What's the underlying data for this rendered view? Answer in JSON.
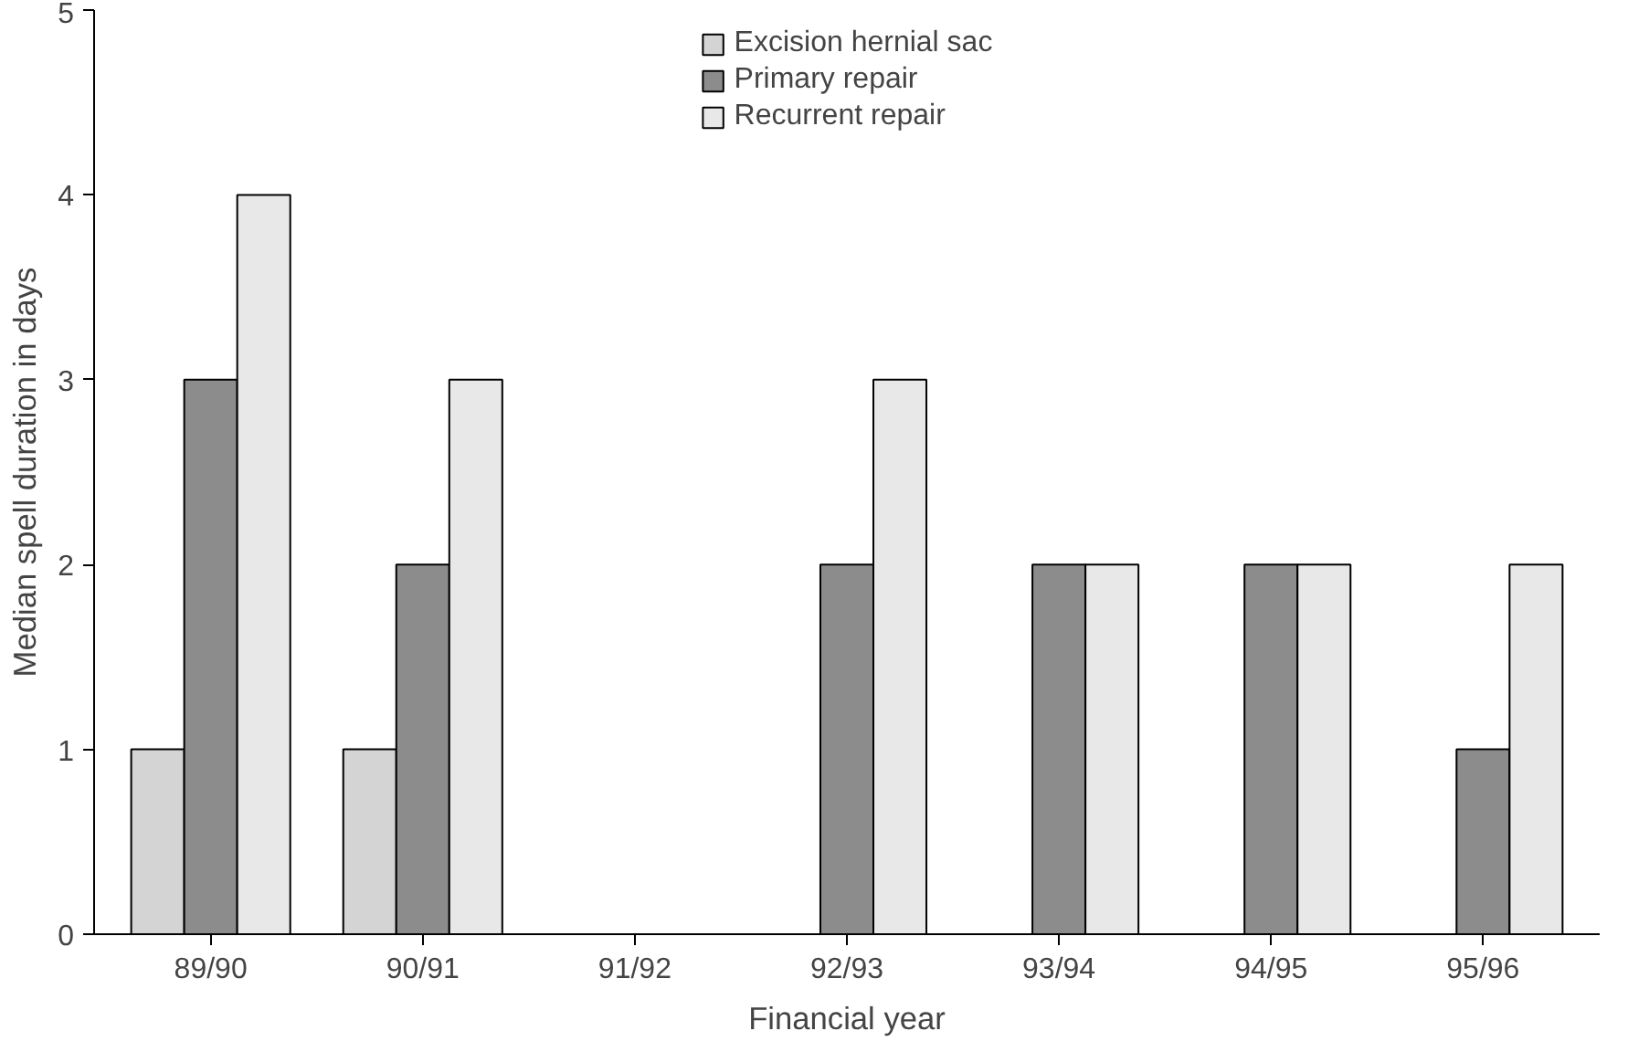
{
  "chart_data": {
    "type": "bar",
    "xlabel": "Financial year",
    "ylabel": "Median spell duration in days",
    "categories": [
      "89/90",
      "90/91",
      "91/92",
      "92/93",
      "93/94",
      "94/95",
      "95/96"
    ],
    "series": [
      {
        "name": "Excision hernial sac",
        "color": "#d4d4d4",
        "values": [
          1,
          1,
          null,
          null,
          null,
          null,
          null
        ]
      },
      {
        "name": "Primary repair",
        "color": "#8c8c8c",
        "values": [
          3,
          2,
          null,
          2,
          2,
          2,
          1
        ]
      },
      {
        "name": "Recurrent repair",
        "color": "#e8e8e8",
        "values": [
          4,
          3,
          null,
          3,
          2,
          2,
          2
        ]
      }
    ],
    "ylim": [
      0,
      5
    ],
    "yticks": [
      0,
      1,
      2,
      3,
      4,
      5
    ],
    "grid": false,
    "legend": "top"
  }
}
